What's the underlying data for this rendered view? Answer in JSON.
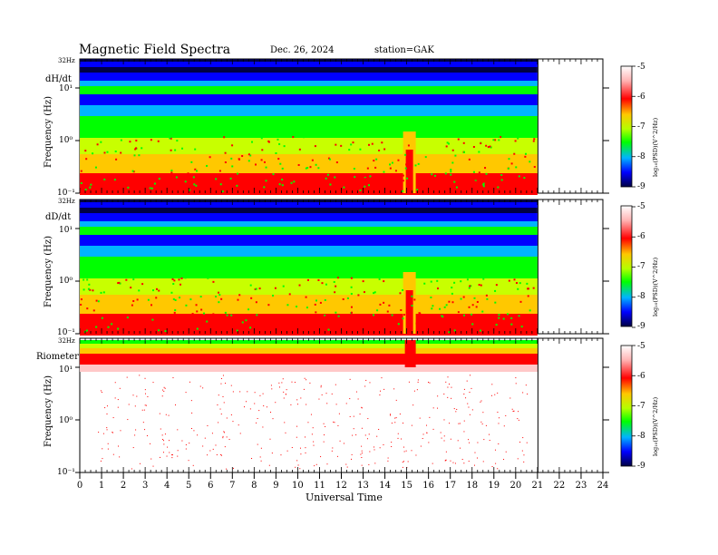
{
  "header": {
    "title": "Magnetic  Field  Spectra",
    "date": "Dec. 26, 2024",
    "station": "station=GAK"
  },
  "colors": {
    "colormap": [
      "#000044",
      "#0000ff",
      "#00b4ff",
      "#00ff00",
      "#c8ff00",
      "#ffc800",
      "#ff0000",
      "#ffc8c8",
      "#ffffff"
    ]
  },
  "chart_data": [
    {
      "type": "heatmap",
      "panel_label": "dH/dt",
      "ylabel": "Frequency  (Hz)",
      "top_label": "32Hz",
      "yticks": [
        "10¹",
        "10⁰",
        "10⁻¹"
      ],
      "yscale": "log",
      "ylim": [
        0.1,
        32
      ],
      "xlim": [
        0,
        24
      ],
      "data_end_hour": 21,
      "colorbar": {
        "label": "log₁₀(PSD)(V^2/Hz)",
        "ticks": [
          "-5",
          "-6",
          "-7",
          "-8",
          "-9"
        ],
        "range": [
          -9,
          -5
        ]
      }
    },
    {
      "type": "heatmap",
      "panel_label": "dD/dt",
      "ylabel": "Frequency  (Hz)",
      "top_label": "32Hz",
      "yticks": [
        "10¹",
        "10⁰",
        "10⁻¹"
      ],
      "yscale": "log",
      "ylim": [
        0.1,
        32
      ],
      "xlim": [
        0,
        24
      ],
      "data_end_hour": 21,
      "colorbar": {
        "label": "log₁₀(PSD)(V^2/Hz)",
        "ticks": [
          "-5",
          "-6",
          "-7",
          "-8",
          "-9"
        ],
        "range": [
          -9,
          -5
        ]
      }
    },
    {
      "type": "heatmap",
      "panel_label": "Riometer",
      "ylabel": "Frequency  (Hz)",
      "top_label": "32Hz",
      "yticks": [
        "10¹",
        "10⁰",
        "10⁻¹"
      ],
      "yscale": "log",
      "ylim": [
        0.1,
        32
      ],
      "xlim": [
        0,
        24
      ],
      "data_end_hour": 21,
      "xlabel": "Universal Time",
      "xticks": [
        "0",
        "1",
        "2",
        "3",
        "4",
        "5",
        "6",
        "7",
        "8",
        "9",
        "10",
        "11",
        "12",
        "13",
        "14",
        "15",
        "16",
        "17",
        "18",
        "19",
        "20",
        "21",
        "22",
        "23",
        "24"
      ],
      "colorbar": {
        "label": "log₁₀(PSD)(V^2/Hz)",
        "ticks": [
          "-5",
          "-6",
          "-7",
          "-8",
          "-9"
        ],
        "range": [
          -9,
          -5
        ]
      }
    }
  ]
}
